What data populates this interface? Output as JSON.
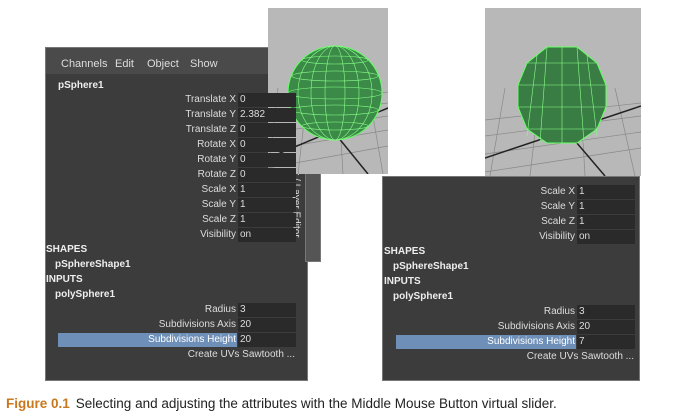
{
  "left_panel": {
    "menu": [
      "Channels",
      "Edit",
      "Object",
      "Show"
    ],
    "object": "pSphere1",
    "channels": [
      {
        "label": "Translate X",
        "value": "0"
      },
      {
        "label": "Translate Y",
        "value": "2.382"
      },
      {
        "label": "Translate Z",
        "value": "0"
      },
      {
        "label": "Rotate X",
        "value": "0"
      },
      {
        "label": "Rotate Y",
        "value": "0"
      },
      {
        "label": "Rotate Z",
        "value": "0"
      },
      {
        "label": "Scale X",
        "value": "1"
      },
      {
        "label": "Scale Y",
        "value": "1"
      },
      {
        "label": "Scale Z",
        "value": "1"
      },
      {
        "label": "Visibility",
        "value": "on"
      }
    ],
    "shapes_header": "SHAPES",
    "shape": "pSphereShape1",
    "inputs_header": "INPUTS",
    "input": "polySphere1",
    "input_channels": [
      {
        "label": "Radius",
        "value": "3"
      },
      {
        "label": "Subdivisions Axis",
        "value": "20"
      },
      {
        "label": "Subdivisions Height",
        "value": "20"
      }
    ],
    "create_uvs": "Create UVs Sawtooth ...",
    "side_tab": "x / Layer Editor"
  },
  "right_panel": {
    "channels": [
      {
        "label": "Scale X",
        "value": "1"
      },
      {
        "label": "Scale Y",
        "value": "1"
      },
      {
        "label": "Scale Z",
        "value": "1"
      },
      {
        "label": "Visibility",
        "value": "on"
      }
    ],
    "shapes_header": "SHAPES",
    "shape": "pSphereShape1",
    "inputs_header": "INPUTS",
    "input": "polySphere1",
    "input_channels": [
      {
        "label": "Radius",
        "value": "3"
      },
      {
        "label": "Subdivisions Axis",
        "value": "20"
      },
      {
        "label": "Subdivisions Height",
        "value": "7"
      }
    ],
    "create_uvs": "Create UVs Sawtooth ..."
  },
  "caption": {
    "label": "Figure 0.1",
    "text": "Selecting and adjusting the attributes with the Middle Mouse Button virtual slider."
  }
}
